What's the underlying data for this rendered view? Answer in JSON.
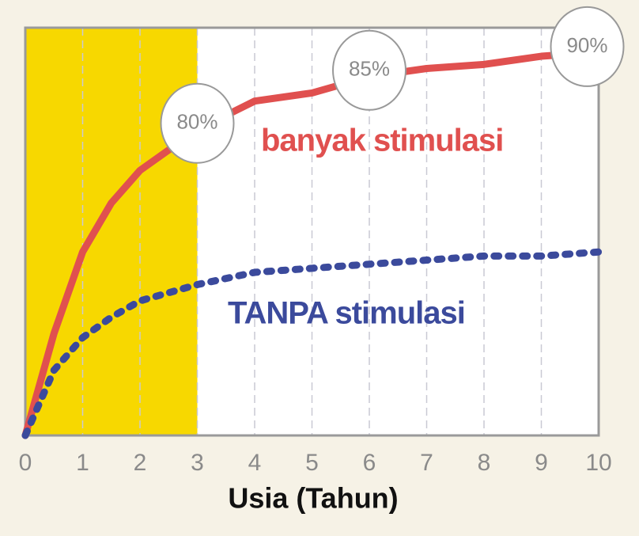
{
  "chart_data": {
    "type": "line",
    "x": [
      0,
      0.5,
      1,
      1.5,
      2,
      2.5,
      3,
      4,
      5,
      6,
      7,
      8,
      9,
      10
    ],
    "series": [
      {
        "name": "banyak stimulasi",
        "color": "#e0504f",
        "values": [
          0,
          25,
          45,
          57,
          65,
          70,
          75,
          82,
          84,
          88,
          90,
          91,
          93,
          94
        ]
      },
      {
        "name": "TANPA stimulasi",
        "color": "#3b4a9c",
        "style": "dotted",
        "values": [
          0,
          16,
          24,
          29,
          33,
          35,
          37,
          40,
          41,
          42,
          43,
          44,
          44,
          45
        ]
      }
    ],
    "annotations": [
      {
        "x": 3,
        "text": "80%"
      },
      {
        "x": 6,
        "text": "85%"
      },
      {
        "x": 9.8,
        "text": "90%"
      }
    ],
    "highlight": [
      0,
      3
    ],
    "highlight_color": "#f7d800",
    "xlabel": "Usia (Tahun)",
    "xlim": [
      0,
      10
    ],
    "xticks": [
      0,
      1,
      2,
      3,
      4,
      5,
      6,
      7,
      8,
      9,
      10
    ],
    "ylim": [
      0,
      100
    ],
    "grid": true
  }
}
